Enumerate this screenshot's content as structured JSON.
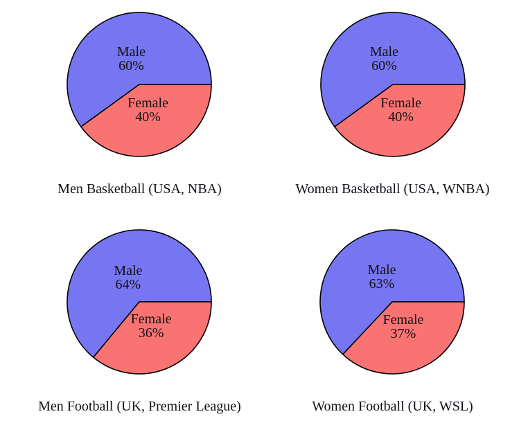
{
  "colors": {
    "male_fill": "#7776f2",
    "female_fill": "#f97373",
    "outline": "#000000",
    "text": "#101018"
  },
  "chart_data": [
    {
      "type": "pie",
      "title": "Men Basketball (USA, NBA)",
      "start_angle_deg": 0,
      "direction": "counterclockwise",
      "legend_position": "inside",
      "slices": [
        {
          "label": "Male",
          "value_pct": 60,
          "pct_label": "60%",
          "color": "#7776f2"
        },
        {
          "label": "Female",
          "value_pct": 40,
          "pct_label": "40%",
          "color": "#f97373"
        }
      ]
    },
    {
      "type": "pie",
      "title": "Women Basketball (USA, WNBA)",
      "start_angle_deg": 0,
      "direction": "counterclockwise",
      "legend_position": "inside",
      "slices": [
        {
          "label": "Male",
          "value_pct": 60,
          "pct_label": "60%",
          "color": "#7776f2"
        },
        {
          "label": "Female",
          "value_pct": 40,
          "pct_label": "40%",
          "color": "#f97373"
        }
      ]
    },
    {
      "type": "pie",
      "title": "Men Football (UK, Premier League)",
      "start_angle_deg": 0,
      "direction": "counterclockwise",
      "legend_position": "inside",
      "slices": [
        {
          "label": "Male",
          "value_pct": 64,
          "pct_label": "64%",
          "color": "#7776f2"
        },
        {
          "label": "Female",
          "value_pct": 36,
          "pct_label": "36%",
          "color": "#f97373"
        }
      ]
    },
    {
      "type": "pie",
      "title": "Women Football (UK, WSL)",
      "start_angle_deg": 0,
      "direction": "counterclockwise",
      "legend_position": "inside",
      "slices": [
        {
          "label": "Male",
          "value_pct": 63,
          "pct_label": "63%",
          "color": "#7776f2"
        },
        {
          "label": "Female",
          "value_pct": 37,
          "pct_label": "37%",
          "color": "#f97373"
        }
      ]
    }
  ]
}
